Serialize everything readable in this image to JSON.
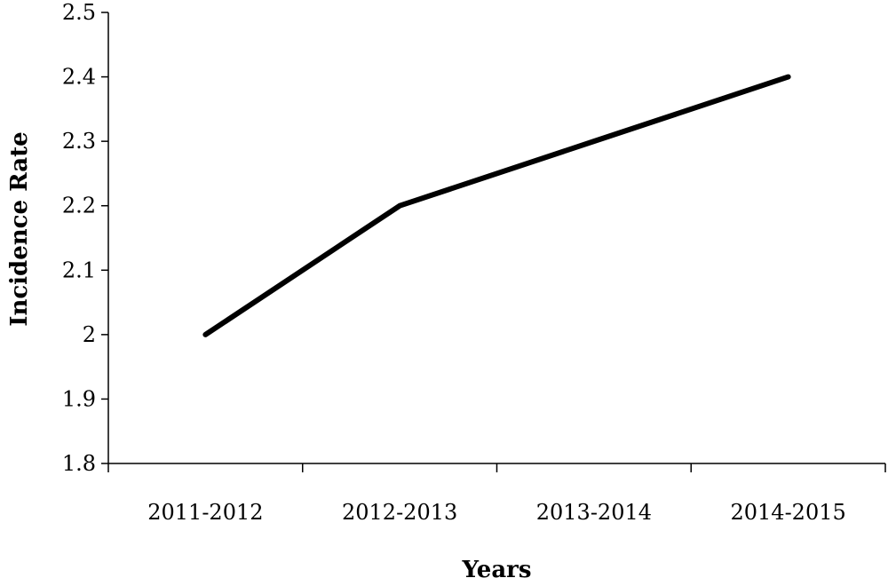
{
  "chart_data": {
    "type": "line",
    "title": "",
    "xlabel": "Years",
    "ylabel": "Incidence Rate",
    "categories": [
      "2011-2012",
      "2012-2013",
      "2013-2014",
      "2014-2015"
    ],
    "series": [
      {
        "values": [
          2.0,
          2.2,
          2.3,
          2.4
        ],
        "color": "#000000"
      }
    ],
    "ylim": [
      1.8,
      2.5
    ],
    "yticks": [
      "1.8",
      "1.9",
      "2",
      "2.1",
      "2.2",
      "2.3",
      "2.4",
      "2.5"
    ],
    "grid": false,
    "legend": "none"
  }
}
